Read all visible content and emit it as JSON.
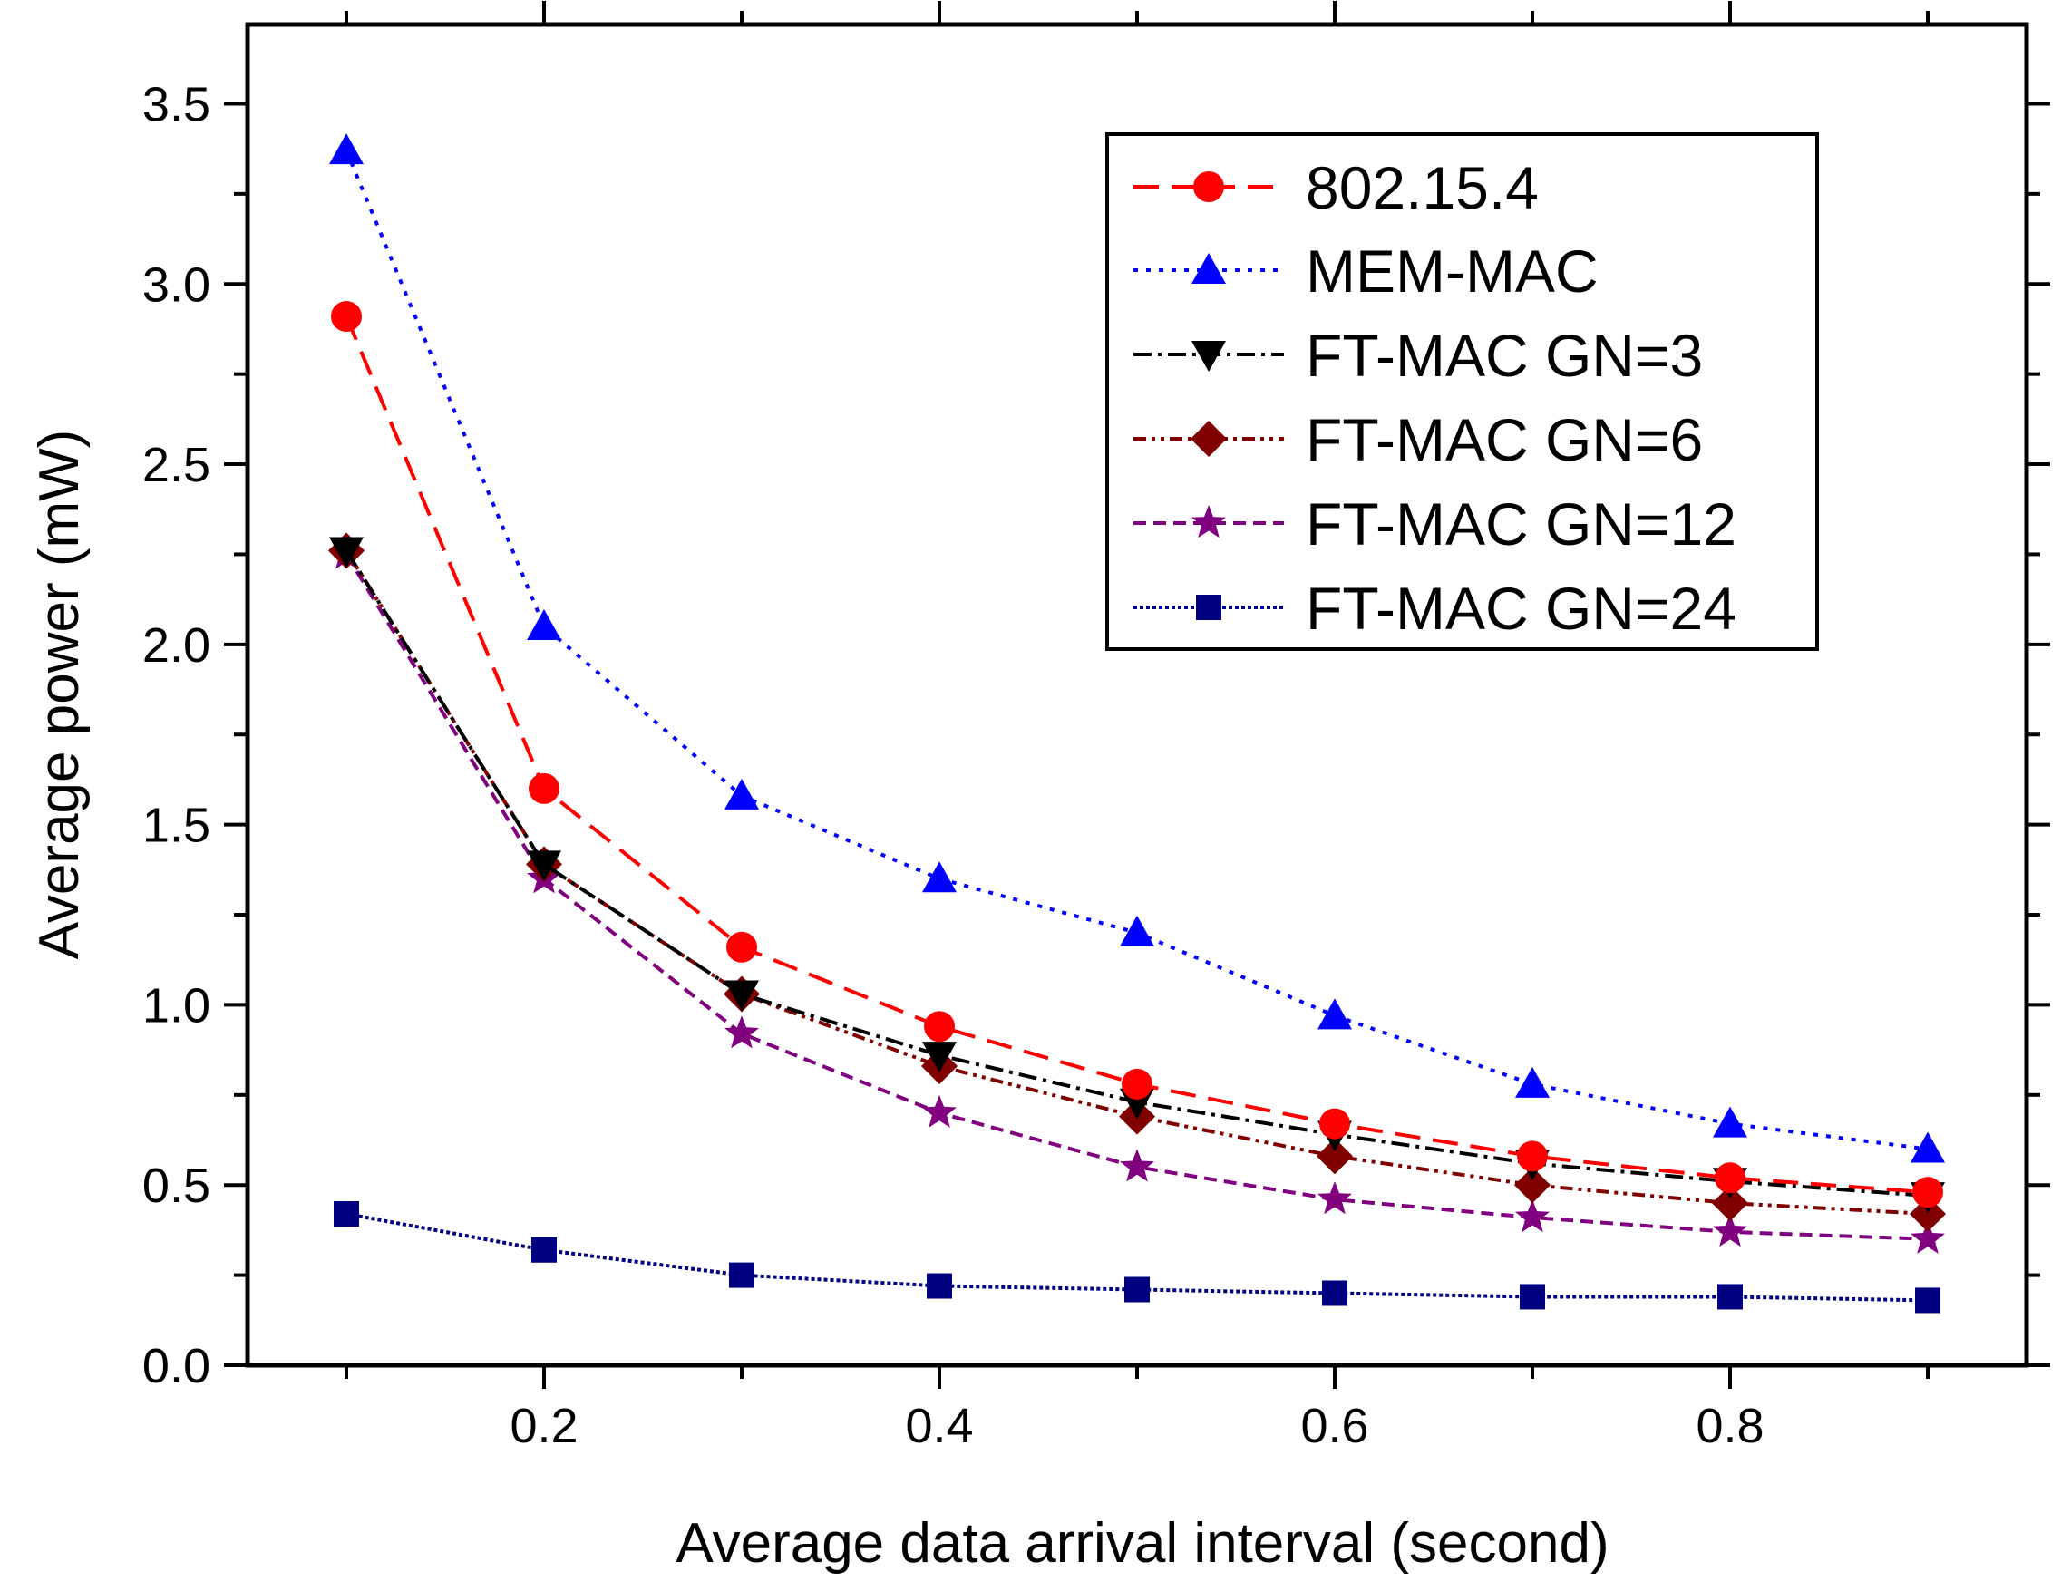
{
  "chart_data": {
    "type": "line",
    "title": "",
    "xlabel": "Average data arrival interval (second)",
    "ylabel": "Average power (mW)",
    "xlim": [
      0.05,
      0.95
    ],
    "ylim": [
      0.0,
      3.72
    ],
    "xticks": [
      0.2,
      0.4,
      0.6,
      0.8
    ],
    "xtick_labels": [
      "0.2",
      "0.4",
      "0.6",
      "0.8"
    ],
    "yticks": [
      0.0,
      0.5,
      1.0,
      1.5,
      2.0,
      2.5,
      3.0,
      3.5
    ],
    "ytick_labels": [
      "0.0",
      "0.5",
      "1.0",
      "1.5",
      "2.0",
      "2.5",
      "3.0",
      "3.5"
    ],
    "grid": false,
    "legend_position": "top-right",
    "x": [
      0.1,
      0.2,
      0.3,
      0.4,
      0.5,
      0.6,
      0.7,
      0.8,
      0.9
    ],
    "series": [
      {
        "name": "802.15.4",
        "values": [
          2.91,
          1.6,
          1.16,
          0.94,
          0.78,
          0.67,
          0.58,
          0.52,
          0.48
        ],
        "color": "#ff0000",
        "marker": "circle",
        "dash": "28 14"
      },
      {
        "name": "MEM-MAC",
        "values": [
          3.37,
          2.05,
          1.58,
          1.35,
          1.2,
          0.97,
          0.78,
          0.67,
          0.6
        ],
        "color": "#0000ff",
        "marker": "triangle-up",
        "dash": "5 9"
      },
      {
        "name": "FT-MAC GN=3",
        "values": [
          2.26,
          1.39,
          1.03,
          0.86,
          0.73,
          0.64,
          0.56,
          0.51,
          0.47
        ],
        "color": "#000000",
        "marker": "triangle-down",
        "dash": "20 7 4 7"
      },
      {
        "name": "FT-MAC GN=6",
        "values": [
          2.26,
          1.39,
          1.03,
          0.83,
          0.69,
          0.58,
          0.5,
          0.45,
          0.42
        ],
        "color": "#800000",
        "marker": "diamond",
        "dash": "14 6 4 6 4 6"
      },
      {
        "name": "FT-MAC GN=12",
        "values": [
          2.25,
          1.35,
          0.92,
          0.7,
          0.55,
          0.46,
          0.41,
          0.37,
          0.35
        ],
        "color": "#800080",
        "marker": "star",
        "dash": "14 8"
      },
      {
        "name": "FT-MAC GN=24",
        "values": [
          0.42,
          0.32,
          0.25,
          0.22,
          0.21,
          0.2,
          0.19,
          0.19,
          0.18
        ],
        "color": "#000080",
        "marker": "square",
        "dash": "4 3"
      }
    ]
  }
}
